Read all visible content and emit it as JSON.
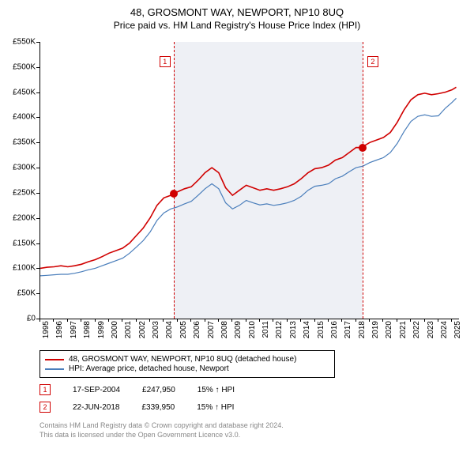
{
  "title": "48, GROSMONT WAY, NEWPORT, NP10 8UQ",
  "subtitle": "Price paid vs. HM Land Registry's House Price Index (HPI)",
  "chart": {
    "type": "line",
    "x_range": [
      1995,
      2025.5
    ],
    "y_range": [
      0,
      550000
    ],
    "y_ticks": [
      0,
      50000,
      100000,
      150000,
      200000,
      250000,
      300000,
      350000,
      400000,
      450000,
      500000,
      550000
    ],
    "y_tick_labels": [
      "£0",
      "£50K",
      "£100K",
      "£150K",
      "£200K",
      "£250K",
      "£300K",
      "£350K",
      "£400K",
      "£450K",
      "£500K",
      "£550K"
    ],
    "x_ticks": [
      1995,
      1996,
      1997,
      1998,
      1999,
      2000,
      2001,
      2002,
      2003,
      2004,
      2005,
      2006,
      2007,
      2008,
      2009,
      2010,
      2011,
      2012,
      2013,
      2014,
      2015,
      2016,
      2017,
      2018,
      2019,
      2020,
      2021,
      2022,
      2023,
      2024,
      2025
    ],
    "band_start": 2004.7,
    "band_end": 2018.5,
    "colors": {
      "series_property": "#d00000",
      "series_hpi": "#4a7ebb",
      "band": "#eef0f5",
      "axis": "#000000",
      "footer": "#888888"
    },
    "line_width_property": 1.6,
    "line_width_hpi": 1.2,
    "series_property": [
      [
        1995,
        100000
      ],
      [
        1995.5,
        102000
      ],
      [
        1996,
        103000
      ],
      [
        1996.5,
        105000
      ],
      [
        1997,
        103000
      ],
      [
        1997.5,
        105000
      ],
      [
        1998,
        108000
      ],
      [
        1998.5,
        113000
      ],
      [
        1999,
        117000
      ],
      [
        1999.5,
        123000
      ],
      [
        2000,
        130000
      ],
      [
        2000.5,
        135000
      ],
      [
        2001,
        140000
      ],
      [
        2001.5,
        150000
      ],
      [
        2002,
        165000
      ],
      [
        2002.5,
        180000
      ],
      [
        2003,
        200000
      ],
      [
        2003.5,
        225000
      ],
      [
        2004,
        240000
      ],
      [
        2004.5,
        245000
      ],
      [
        2004.71,
        247950
      ],
      [
        2005,
        252000
      ],
      [
        2005.5,
        258000
      ],
      [
        2006,
        262000
      ],
      [
        2006.5,
        275000
      ],
      [
        2007,
        290000
      ],
      [
        2007.5,
        300000
      ],
      [
        2008,
        290000
      ],
      [
        2008.5,
        260000
      ],
      [
        2009,
        245000
      ],
      [
        2009.5,
        255000
      ],
      [
        2010,
        265000
      ],
      [
        2010.5,
        260000
      ],
      [
        2011,
        255000
      ],
      [
        2011.5,
        258000
      ],
      [
        2012,
        255000
      ],
      [
        2012.5,
        258000
      ],
      [
        2013,
        262000
      ],
      [
        2013.5,
        268000
      ],
      [
        2014,
        278000
      ],
      [
        2014.5,
        290000
      ],
      [
        2015,
        298000
      ],
      [
        2015.5,
        300000
      ],
      [
        2016,
        305000
      ],
      [
        2016.5,
        315000
      ],
      [
        2017,
        320000
      ],
      [
        2017.5,
        330000
      ],
      [
        2018,
        340000
      ],
      [
        2018.47,
        339950
      ],
      [
        2018.5,
        342000
      ],
      [
        2019,
        350000
      ],
      [
        2019.5,
        355000
      ],
      [
        2020,
        360000
      ],
      [
        2020.5,
        370000
      ],
      [
        2021,
        390000
      ],
      [
        2021.5,
        415000
      ],
      [
        2022,
        435000
      ],
      [
        2022.5,
        445000
      ],
      [
        2023,
        448000
      ],
      [
        2023.5,
        445000
      ],
      [
        2024,
        447000
      ],
      [
        2024.5,
        450000
      ],
      [
        2025,
        455000
      ],
      [
        2025.3,
        460000
      ]
    ],
    "series_hpi": [
      [
        1995,
        85000
      ],
      [
        1995.5,
        86000
      ],
      [
        1996,
        87000
      ],
      [
        1996.5,
        88000
      ],
      [
        1997,
        88000
      ],
      [
        1997.5,
        90000
      ],
      [
        1998,
        93000
      ],
      [
        1998.5,
        97000
      ],
      [
        1999,
        100000
      ],
      [
        1999.5,
        105000
      ],
      [
        2000,
        110000
      ],
      [
        2000.5,
        115000
      ],
      [
        2001,
        120000
      ],
      [
        2001.5,
        130000
      ],
      [
        2002,
        142000
      ],
      [
        2002.5,
        155000
      ],
      [
        2003,
        172000
      ],
      [
        2003.5,
        195000
      ],
      [
        2004,
        210000
      ],
      [
        2004.5,
        218000
      ],
      [
        2005,
        222000
      ],
      [
        2005.5,
        228000
      ],
      [
        2006,
        233000
      ],
      [
        2006.5,
        245000
      ],
      [
        2007,
        258000
      ],
      [
        2007.5,
        268000
      ],
      [
        2008,
        258000
      ],
      [
        2008.5,
        230000
      ],
      [
        2009,
        218000
      ],
      [
        2009.5,
        225000
      ],
      [
        2010,
        235000
      ],
      [
        2010.5,
        230000
      ],
      [
        2011,
        226000
      ],
      [
        2011.5,
        228000
      ],
      [
        2012,
        225000
      ],
      [
        2012.5,
        227000
      ],
      [
        2013,
        230000
      ],
      [
        2013.5,
        235000
      ],
      [
        2014,
        243000
      ],
      [
        2014.5,
        255000
      ],
      [
        2015,
        263000
      ],
      [
        2015.5,
        265000
      ],
      [
        2016,
        268000
      ],
      [
        2016.5,
        278000
      ],
      [
        2017,
        283000
      ],
      [
        2017.5,
        292000
      ],
      [
        2018,
        300000
      ],
      [
        2018.5,
        303000
      ],
      [
        2019,
        310000
      ],
      [
        2019.5,
        315000
      ],
      [
        2020,
        320000
      ],
      [
        2020.5,
        330000
      ],
      [
        2021,
        348000
      ],
      [
        2021.5,
        372000
      ],
      [
        2022,
        392000
      ],
      [
        2022.5,
        402000
      ],
      [
        2023,
        405000
      ],
      [
        2023.5,
        402000
      ],
      [
        2024,
        403000
      ],
      [
        2024.5,
        418000
      ],
      [
        2025,
        430000
      ],
      [
        2025.3,
        438000
      ]
    ],
    "sale_points": [
      {
        "num": "1",
        "x": 2004.71,
        "y": 247950,
        "marker_offset_px": -18
      },
      {
        "num": "2",
        "x": 2018.47,
        "y": 339950,
        "marker_offset_px": 6
      }
    ]
  },
  "legend": {
    "items": [
      {
        "color": "#d00000",
        "label": "48, GROSMONT WAY, NEWPORT, NP10 8UQ (detached house)"
      },
      {
        "color": "#4a7ebb",
        "label": "HPI: Average price, detached house, Newport"
      }
    ]
  },
  "sales": [
    {
      "num": "1",
      "date": "17-SEP-2004",
      "price": "£247,950",
      "pct": "15% ↑ HPI"
    },
    {
      "num": "2",
      "date": "22-JUN-2018",
      "price": "£339,950",
      "pct": "15% ↑ HPI"
    }
  ],
  "footer": {
    "line1": "Contains HM Land Registry data © Crown copyright and database right 2024.",
    "line2": "This data is licensed under the Open Government Licence v3.0."
  }
}
